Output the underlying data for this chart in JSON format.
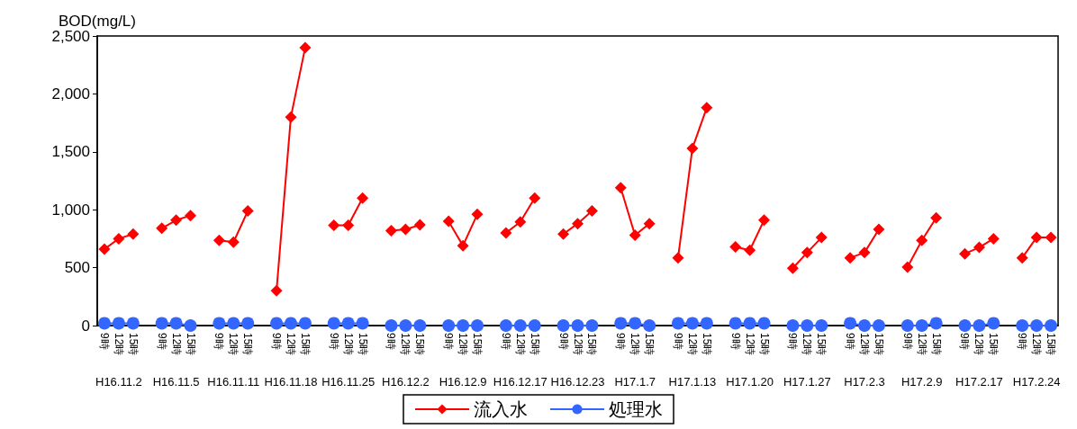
{
  "chart_data": {
    "type": "line",
    "ylabel": "BOD(mg/L)",
    "categories": [
      "9時",
      "12時",
      "15時",
      null,
      "9時",
      "12時",
      "15時",
      null,
      "9時",
      "12時",
      "15時",
      null,
      "9時",
      "12時",
      "15時",
      null,
      "9時",
      "12時",
      "15時",
      null,
      "9時",
      "12時",
      "15時",
      null,
      "9時",
      "12時",
      "15時",
      null,
      "9時",
      "12時",
      "15時",
      null,
      "9時",
      "12時",
      "15時",
      null,
      "9時",
      "12時",
      "15時",
      null,
      "9時",
      "12時",
      "15時",
      null,
      "9時",
      "12時",
      "15時",
      null,
      "9時",
      "12時",
      "15時",
      null,
      "9時",
      "12時",
      "15時",
      null,
      "9時",
      "12時",
      "15時",
      null,
      "9時",
      "12時",
      "15時",
      null,
      "9時",
      "12時",
      "15時"
    ],
    "series": [
      {
        "name": "流入水",
        "color": "#ff0000",
        "marker": "diamond",
        "values": [
          660,
          750,
          790,
          null,
          840,
          910,
          950,
          null,
          735,
          720,
          990,
          null,
          300,
          1800,
          2400,
          null,
          865,
          865,
          1100,
          null,
          820,
          830,
          870,
          null,
          900,
          690,
          960,
          null,
          800,
          895,
          1100,
          null,
          790,
          880,
          990,
          null,
          1190,
          780,
          880,
          null,
          585,
          1530,
          1880,
          null,
          680,
          650,
          910,
          null,
          495,
          630,
          760,
          null,
          585,
          630,
          830,
          null,
          505,
          735,
          930,
          null,
          620,
          675,
          750,
          null,
          585,
          760,
          760
        ]
      },
      {
        "name": "処理水",
        "color": "#3366ff",
        "marker": "circle",
        "values": [
          20,
          20,
          20,
          null,
          20,
          20,
          0,
          null,
          20,
          20,
          20,
          null,
          20,
          20,
          20,
          null,
          20,
          20,
          20,
          null,
          0,
          0,
          0,
          null,
          0,
          0,
          0,
          null,
          0,
          0,
          0,
          null,
          0,
          0,
          0,
          null,
          20,
          20,
          0,
          null,
          20,
          20,
          20,
          null,
          20,
          20,
          20,
          null,
          0,
          0,
          0,
          null,
          20,
          0,
          0,
          null,
          0,
          0,
          20,
          null,
          0,
          0,
          20,
          null,
          0,
          0,
          0
        ]
      }
    ],
    "ylim": [
      0,
      2500
    ],
    "yticks": [
      0,
      {
        "value": 500,
        "label": "500"
      },
      {
        "value": 1000,
        "label": "1,000"
      },
      {
        "value": 1500,
        "label": "1,500"
      },
      {
        "value": 2000,
        "label": "2,000"
      },
      {
        "value": 2500,
        "label": "2,500"
      }
    ],
    "annotations": [
      "H16.11.2",
      "H16.11.5",
      "H16.11.11",
      "H16.11.18",
      "H16.11.25",
      "H16.12.2",
      "H16.12.9",
      "H16.12.17",
      "H16.12.23",
      "H17.1.7",
      "H17.1.13",
      "H17.1.20",
      "H17.1.27",
      "H17.2.3",
      "H17.2.9",
      "H17.2.17",
      "H17.2.24"
    ],
    "grid": false,
    "legend": "bottom",
    "line_style": "solid"
  }
}
